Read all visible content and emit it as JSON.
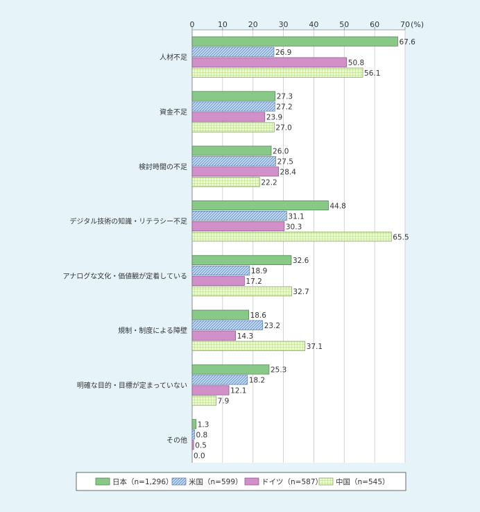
{
  "chart_data": {
    "type": "bar",
    "orientation": "horizontal",
    "unit": "(%)",
    "xlim": [
      0,
      70
    ],
    "ticks": [
      0,
      10,
      20,
      30,
      40,
      50,
      60,
      70
    ],
    "grid": true,
    "legend_position": "bottom",
    "categories": [
      "人材不足",
      "資金不足",
      "検討時間の不足",
      "デジタル技術の知識・リテラシー不足",
      "アナログな文化・価値観が定着している",
      "規制・制度による障壁",
      "明確な目的・目標が定まっていない",
      "その他"
    ],
    "series": [
      {
        "name": "日本（n=1,296）",
        "color": "#88c988",
        "pattern": "solid",
        "values": [
          67.6,
          27.3,
          26.0,
          44.8,
          32.6,
          18.6,
          25.3,
          1.3
        ]
      },
      {
        "name": "米国（n=599）",
        "color": "#a9c9ee",
        "pattern": "diagonal",
        "values": [
          26.9,
          27.2,
          27.5,
          31.1,
          18.9,
          23.2,
          18.2,
          0.8
        ]
      },
      {
        "name": "ドイツ（n=587）",
        "color": "#d190c8",
        "pattern": "solid",
        "values": [
          50.8,
          23.9,
          28.4,
          30.3,
          17.2,
          14.3,
          12.1,
          0.5
        ]
      },
      {
        "name": "中国（n=545）",
        "color": "#ddf0b0",
        "pattern": "grid",
        "values": [
          56.1,
          27.0,
          22.2,
          65.5,
          32.7,
          37.1,
          7.9,
          0.0
        ]
      }
    ]
  }
}
